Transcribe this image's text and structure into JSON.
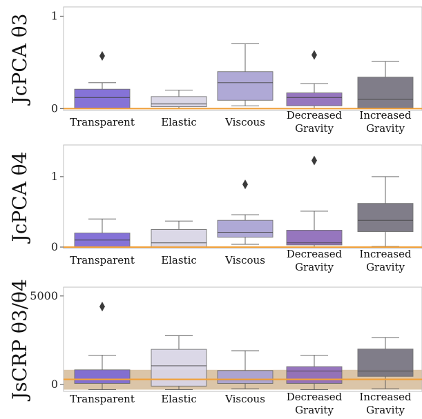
{
  "palette": {
    "transparent": "#7b68d4",
    "elastic": "#d8d5e6",
    "viscous": "#a9a2d3",
    "decreased_gravity": "#8e6bb9",
    "increased_gravity": "#76737f",
    "reference_line": "#f0a13c",
    "reference_band": "#d9c2a3",
    "frame": "#bfbfbf"
  },
  "chart_data": [
    {
      "type": "box",
      "ylabel": "JcPCA θ3",
      "ylim": [
        -0.02,
        1.1
      ],
      "yticks": [
        0,
        1
      ],
      "yticklabels": [
        "0",
        "1"
      ],
      "categories": [
        "Transparent",
        "Elastic",
        "Viscous",
        "Decreased Gravity",
        "Increased Gravity"
      ],
      "category_lines": [
        [
          "Transparent"
        ],
        [
          "Elastic"
        ],
        [
          "Viscous"
        ],
        [
          "Decreased",
          "Gravity"
        ],
        [
          "Increased",
          "Gravity"
        ]
      ],
      "boxes": [
        {
          "whislo": 0.0,
          "q1": 0.0,
          "med": 0.12,
          "q3": 0.21,
          "whishi": 0.28,
          "fliers": [
            0.57
          ]
        },
        {
          "whislo": 0.0,
          "q1": 0.02,
          "med": 0.05,
          "q3": 0.13,
          "whishi": 0.2,
          "fliers": []
        },
        {
          "whislo": 0.03,
          "q1": 0.09,
          "med": 0.28,
          "q3": 0.4,
          "whishi": 0.7,
          "fliers": []
        },
        {
          "whislo": 0.0,
          "q1": 0.03,
          "med": 0.12,
          "q3": 0.17,
          "whishi": 0.27,
          "fliers": [
            0.58
          ]
        },
        {
          "whislo": 0.0,
          "q1": 0.0,
          "med": 0.1,
          "q3": 0.34,
          "whishi": 0.51,
          "fliers": []
        }
      ],
      "reference_line": 0.0,
      "reference_band": [
        0.0,
        0.0
      ]
    },
    {
      "type": "box",
      "ylabel": "JcPCA θ4",
      "ylim": [
        -0.02,
        1.45
      ],
      "yticks": [
        0,
        1
      ],
      "yticklabels": [
        "0",
        "1"
      ],
      "categories": [
        "Transparent",
        "Elastic",
        "Viscous",
        "Decreased Gravity",
        "Increased Gravity"
      ],
      "category_lines": [
        [
          "Transparent"
        ],
        [
          "Elastic"
        ],
        [
          "Viscous"
        ],
        [
          "Decreased",
          "Gravity"
        ],
        [
          "Increased",
          "Gravity"
        ]
      ],
      "boxes": [
        {
          "whislo": 0.0,
          "q1": 0.0,
          "med": 0.1,
          "q3": 0.2,
          "whishi": 0.4,
          "fliers": []
        },
        {
          "whislo": 0.0,
          "q1": 0.0,
          "med": 0.06,
          "q3": 0.25,
          "whishi": 0.37,
          "fliers": []
        },
        {
          "whislo": 0.04,
          "q1": 0.14,
          "med": 0.21,
          "q3": 0.38,
          "whishi": 0.46,
          "fliers": [
            0.89
          ]
        },
        {
          "whislo": 0.0,
          "q1": 0.03,
          "med": 0.06,
          "q3": 0.24,
          "whishi": 0.51,
          "fliers": [
            1.23
          ]
        },
        {
          "whislo": 0.01,
          "q1": 0.22,
          "med": 0.38,
          "q3": 0.62,
          "whishi": 1.0,
          "fliers": []
        }
      ],
      "reference_line": 0.0,
      "reference_band": [
        0.0,
        0.0
      ]
    },
    {
      "type": "box",
      "ylabel": "JsCRP θ3/θ4",
      "ylim": [
        -400,
        5500
      ],
      "yticks": [
        0,
        5000
      ],
      "yticklabels": [
        "0",
        "5000"
      ],
      "categories": [
        "Transparent",
        "Elastic",
        "Viscous",
        "Decreased Gravity",
        "Increased Gravity"
      ],
      "category_lines": [
        [
          "Transparent"
        ],
        [
          "Elastic"
        ],
        [
          "Viscous"
        ],
        [
          "Decreased",
          "Gravity"
        ],
        [
          "Increased",
          "Gravity"
        ]
      ],
      "boxes": [
        {
          "whislo": -300,
          "q1": 50,
          "med": 300,
          "q3": 820,
          "whishi": 1650,
          "fliers": [
            4400
          ]
        },
        {
          "whislo": -300,
          "q1": -100,
          "med": 1050,
          "q3": 1980,
          "whishi": 2750,
          "fliers": []
        },
        {
          "whislo": -250,
          "q1": 50,
          "med": 250,
          "q3": 780,
          "whishi": 1900,
          "fliers": []
        },
        {
          "whislo": -300,
          "q1": 50,
          "med": 750,
          "q3": 1000,
          "whishi": 1650,
          "fliers": []
        },
        {
          "whislo": -250,
          "q1": 450,
          "med": 750,
          "q3": 2000,
          "whishi": 2650,
          "fliers": []
        }
      ],
      "reference_line": 280,
      "reference_band": [
        -300,
        820
      ]
    }
  ]
}
